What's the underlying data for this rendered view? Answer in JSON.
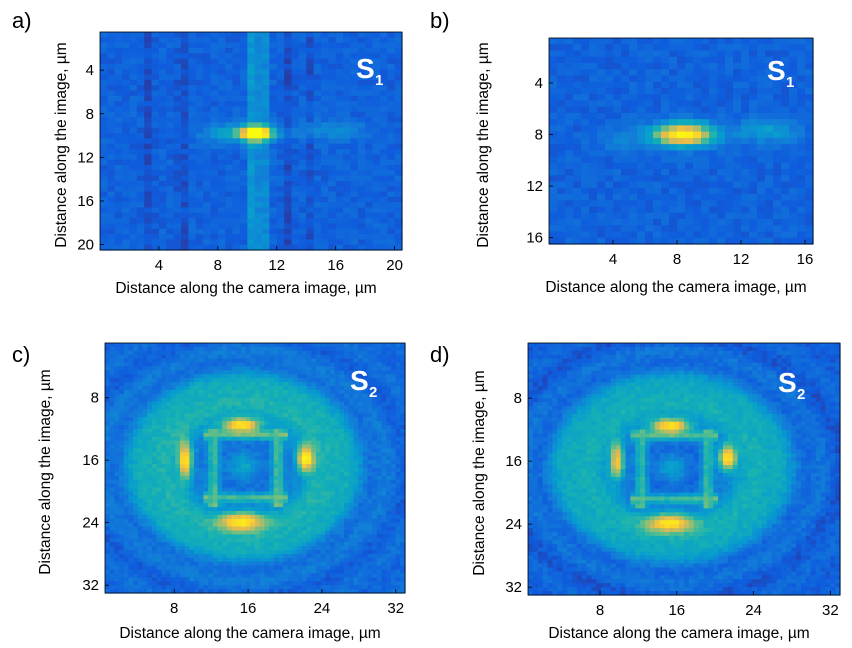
{
  "figure": {
    "xlabel": "Distance along the camera image, µm",
    "ylabel": "Distance along the image, µm"
  },
  "chart_data": [
    {
      "type": "heatmap",
      "panel": "a)",
      "label_main": "S",
      "label_sub": "1",
      "xlim": [
        0,
        20.5
      ],
      "ylim": [
        0.5,
        20.5
      ],
      "xticks": [
        4,
        8,
        12,
        16,
        20
      ],
      "yticks": [
        4,
        8,
        12,
        16,
        20
      ],
      "xlabel": "Distance along the camera image, µm",
      "ylabel": "Distance along the image, µm",
      "colormap": "parula",
      "background_level": 0.12,
      "features": [
        {
          "kind": "spot",
          "x": 10.6,
          "y": 9.8,
          "sx": 0.7,
          "sy": 0.4,
          "amp": 0.9
        },
        {
          "kind": "spot",
          "x": 9.5,
          "y": 9.8,
          "sx": 1.6,
          "sy": 0.6,
          "amp": 0.25
        },
        {
          "kind": "spot",
          "x": 15.5,
          "y": 9.6,
          "sx": 1.8,
          "sy": 0.6,
          "amp": 0.12
        },
        {
          "kind": "stripe",
          "x": 10.45,
          "width": 0.25,
          "amp": 0.22
        },
        {
          "kind": "stripe",
          "x": 11.2,
          "width": 0.2,
          "amp": 0.12
        },
        {
          "kind": "stripe",
          "x": 3.3,
          "width": 0.25,
          "amp": -0.05
        },
        {
          "kind": "stripe",
          "x": 5.6,
          "width": 0.25,
          "amp": -0.05
        },
        {
          "kind": "stripe",
          "x": 12.8,
          "width": 0.25,
          "amp": -0.05
        },
        {
          "kind": "stripe",
          "x": 14.2,
          "width": 0.2,
          "amp": -0.04
        }
      ]
    },
    {
      "type": "heatmap",
      "panel": "b)",
      "label_main": "S",
      "label_sub": "1",
      "xlim": [
        0,
        16.5
      ],
      "ylim": [
        0.5,
        16.5
      ],
      "xticks": [
        4,
        8,
        12,
        16
      ],
      "yticks": [
        4,
        8,
        12,
        16
      ],
      "xlabel": "Distance along the camera image, µm",
      "ylabel": "Distance along the image, µm",
      "colormap": "parula",
      "background_level": 0.12,
      "features": [
        {
          "kind": "spot",
          "x": 8.4,
          "y": 8.0,
          "sx": 1.3,
          "sy": 0.6,
          "amp": 0.85
        },
        {
          "kind": "spot",
          "x": 13.6,
          "y": 7.7,
          "sx": 1.3,
          "sy": 0.6,
          "amp": 0.2
        },
        {
          "kind": "spot",
          "x": 4.5,
          "y": 8.3,
          "sx": 1.0,
          "sy": 0.7,
          "amp": 0.08
        }
      ]
    },
    {
      "type": "heatmap",
      "panel": "c)",
      "label_main": "S",
      "label_sub": "2",
      "xlim": [
        0.5,
        33
      ],
      "ylim": [
        1,
        33
      ],
      "xticks": [
        8,
        16,
        24,
        32
      ],
      "yticks": [
        8,
        16,
        24,
        32
      ],
      "xlabel": "Distance along the camera image, µm",
      "ylabel": "Distance along the image, µm",
      "colormap": "parula",
      "background_level": 0.14,
      "center": [
        15.5,
        16.8
      ],
      "features": [
        {
          "kind": "ring",
          "x": 15.5,
          "y": 16.8,
          "r": 9.5,
          "width": 2.5,
          "amp": 0.28
        },
        {
          "kind": "rect",
          "x0": 12.3,
          "x1": 19.2,
          "y0": 12.8,
          "y1": 20.8,
          "width": 0.45,
          "amp": 0.3
        },
        {
          "kind": "spot",
          "x": 15.3,
          "y": 11.5,
          "sx": 1.4,
          "sy": 0.6,
          "amp": 0.7
        },
        {
          "kind": "spot",
          "x": 15.3,
          "y": 23.8,
          "sx": 1.6,
          "sy": 0.8,
          "amp": 0.6
        },
        {
          "kind": "spot",
          "x": 9.2,
          "y": 16.0,
          "sx": 0.5,
          "sy": 1.6,
          "amp": 0.65
        },
        {
          "kind": "spot",
          "x": 22.2,
          "y": 15.8,
          "sx": 0.6,
          "sy": 1.1,
          "amp": 0.7
        },
        {
          "kind": "spot",
          "x": 15.5,
          "y": 16.8,
          "sx": 1.2,
          "sy": 1.2,
          "amp": 0.2
        }
      ]
    },
    {
      "type": "heatmap",
      "panel": "d)",
      "label_main": "S",
      "label_sub": "2",
      "xlim": [
        0.5,
        33
      ],
      "ylim": [
        1,
        33
      ],
      "xticks": [
        8,
        16,
        24,
        32
      ],
      "yticks": [
        8,
        16,
        24,
        32
      ],
      "xlabel": "Distance along the camera image, µm",
      "ylabel": "Distance along the image, µm",
      "colormap": "parula",
      "background_level": 0.12,
      "center": [
        15.5,
        16.8
      ],
      "features": [
        {
          "kind": "ring",
          "x": 15.5,
          "y": 16.8,
          "r": 9.5,
          "width": 2.5,
          "amp": 0.28
        },
        {
          "kind": "rect",
          "x0": 12.3,
          "x1": 19.2,
          "y0": 12.8,
          "y1": 20.8,
          "width": 0.45,
          "amp": 0.3
        },
        {
          "kind": "spot",
          "x": 15.3,
          "y": 11.5,
          "sx": 1.4,
          "sy": 0.6,
          "amp": 0.7
        },
        {
          "kind": "spot",
          "x": 15.3,
          "y": 23.8,
          "sx": 1.6,
          "sy": 0.8,
          "amp": 0.6
        },
        {
          "kind": "spot",
          "x": 9.8,
          "y": 16.0,
          "sx": 0.5,
          "sy": 1.6,
          "amp": 0.6
        },
        {
          "kind": "spot",
          "x": 21.3,
          "y": 15.6,
          "sx": 0.6,
          "sy": 1.1,
          "amp": 0.7
        },
        {
          "kind": "spot",
          "x": 15.5,
          "y": 16.8,
          "sx": 1.2,
          "sy": 1.2,
          "amp": 0.2
        }
      ]
    }
  ]
}
